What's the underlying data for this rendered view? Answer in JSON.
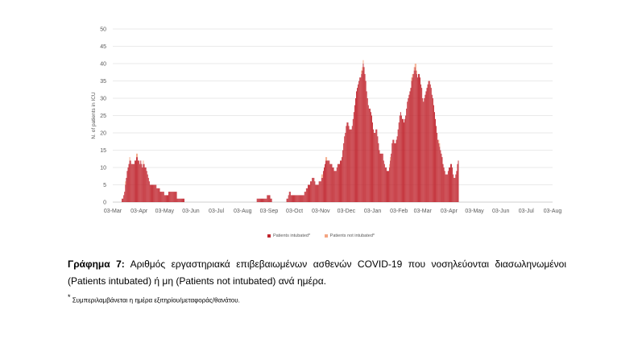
{
  "chart_data": {
    "type": "bar",
    "stacked": true,
    "ylabel": "N. of patients in ICU",
    "xlabel": "",
    "ylim": [
      0,
      50
    ],
    "yticks": [
      0,
      5,
      10,
      15,
      20,
      25,
      30,
      35,
      40,
      45,
      50
    ],
    "grid": true,
    "legend_position": "bottom",
    "xticks": [
      "03-Mar",
      "03-Apr",
      "03-May",
      "03-Jun",
      "03-Jul",
      "03-Aug",
      "03-Sep",
      "03-Oct",
      "03-Nov",
      "03-Dec",
      "03-Jan",
      "03-Feb",
      "03-Mar",
      "03-Apr",
      "03-May",
      "03-Jun",
      "03-Jul",
      "03-Aug"
    ],
    "period": "daily, 03-Mar-2020 to 03-Aug-2021",
    "series": [
      {
        "name": "Patients intubated*",
        "color": "#c0252e",
        "points": [
          [
            1,
            0
          ],
          [
            2,
            0
          ],
          [
            3,
            0
          ],
          [
            4,
            0
          ],
          [
            5,
            0
          ],
          [
            6,
            0
          ],
          [
            7,
            0
          ],
          [
            8,
            0
          ],
          [
            9,
            0
          ],
          [
            10,
            0
          ],
          [
            11,
            1
          ],
          [
            12,
            1
          ],
          [
            13,
            2
          ],
          [
            14,
            3
          ],
          [
            15,
            5
          ],
          [
            16,
            7
          ],
          [
            17,
            9
          ],
          [
            18,
            10
          ],
          [
            19,
            11
          ],
          [
            20,
            12
          ],
          [
            21,
            12
          ],
          [
            22,
            11
          ],
          [
            23,
            11
          ],
          [
            24,
            11
          ],
          [
            25,
            11
          ],
          [
            26,
            12
          ],
          [
            27,
            12
          ],
          [
            28,
            13
          ],
          [
            29,
            13
          ],
          [
            30,
            12
          ],
          [
            31,
            12
          ],
          [
            32,
            11
          ],
          [
            33,
            12
          ],
          [
            34,
            11
          ],
          [
            35,
            10
          ],
          [
            36,
            11
          ],
          [
            37,
            11
          ],
          [
            38,
            10
          ],
          [
            39,
            10
          ],
          [
            40,
            9
          ],
          [
            41,
            8
          ],
          [
            42,
            7
          ],
          [
            43,
            6
          ],
          [
            44,
            5
          ],
          [
            45,
            5
          ],
          [
            46,
            5
          ],
          [
            47,
            5
          ],
          [
            48,
            5
          ],
          [
            49,
            5
          ],
          [
            50,
            5
          ],
          [
            51,
            5
          ],
          [
            52,
            4
          ],
          [
            53,
            4
          ],
          [
            54,
            4
          ],
          [
            55,
            4
          ],
          [
            56,
            3
          ],
          [
            57,
            3
          ],
          [
            58,
            3
          ],
          [
            59,
            3
          ],
          [
            60,
            3
          ],
          [
            61,
            2
          ],
          [
            62,
            2
          ],
          [
            63,
            2
          ],
          [
            64,
            2
          ],
          [
            65,
            2
          ],
          [
            66,
            3
          ],
          [
            67,
            3
          ],
          [
            68,
            3
          ],
          [
            69,
            3
          ],
          [
            70,
            3
          ],
          [
            71,
            3
          ],
          [
            72,
            3
          ],
          [
            73,
            3
          ],
          [
            74,
            3
          ],
          [
            75,
            3
          ],
          [
            76,
            1
          ],
          [
            77,
            1
          ],
          [
            78,
            1
          ],
          [
            79,
            1
          ],
          [
            80,
            1
          ],
          [
            81,
            1
          ],
          [
            82,
            1
          ],
          [
            83,
            1
          ],
          [
            84,
            1
          ],
          [
            85,
            0
          ],
          [
            170,
            1
          ],
          [
            171,
            1
          ],
          [
            172,
            1
          ],
          [
            173,
            1
          ],
          [
            174,
            1
          ],
          [
            175,
            1
          ],
          [
            176,
            1
          ],
          [
            177,
            1
          ],
          [
            178,
            1
          ],
          [
            179,
            1
          ],
          [
            180,
            1
          ],
          [
            181,
            1
          ],
          [
            182,
            2
          ],
          [
            183,
            2
          ],
          [
            184,
            2
          ],
          [
            185,
            2
          ],
          [
            186,
            1
          ],
          [
            187,
            1
          ],
          [
            205,
            1
          ],
          [
            206,
            1
          ],
          [
            207,
            2
          ],
          [
            208,
            3
          ],
          [
            209,
            3
          ],
          [
            210,
            2
          ],
          [
            211,
            2
          ],
          [
            212,
            2
          ],
          [
            213,
            2
          ],
          [
            214,
            2
          ],
          [
            215,
            2
          ],
          [
            216,
            2
          ],
          [
            217,
            2
          ],
          [
            218,
            2
          ],
          [
            219,
            2
          ],
          [
            220,
            2
          ],
          [
            221,
            2
          ],
          [
            222,
            2
          ],
          [
            223,
            2
          ],
          [
            224,
            2
          ],
          [
            225,
            2
          ],
          [
            226,
            3
          ],
          [
            227,
            3
          ],
          [
            228,
            4
          ],
          [
            229,
            4
          ],
          [
            230,
            5
          ],
          [
            231,
            5
          ],
          [
            232,
            5
          ],
          [
            233,
            6
          ],
          [
            234,
            6
          ],
          [
            235,
            7
          ],
          [
            236,
            7
          ],
          [
            237,
            7
          ],
          [
            238,
            6
          ],
          [
            239,
            5
          ],
          [
            240,
            5
          ],
          [
            241,
            5
          ],
          [
            242,
            5
          ],
          [
            243,
            6
          ],
          [
            244,
            6
          ],
          [
            245,
            6
          ],
          [
            246,
            7
          ],
          [
            247,
            7
          ],
          [
            248,
            9
          ],
          [
            249,
            10
          ],
          [
            250,
            11
          ],
          [
            251,
            12
          ],
          [
            252,
            12
          ],
          [
            253,
            12
          ],
          [
            254,
            12
          ],
          [
            255,
            12
          ],
          [
            256,
            11
          ],
          [
            257,
            11
          ],
          [
            258,
            11
          ],
          [
            259,
            10
          ],
          [
            260,
            10
          ],
          [
            261,
            9
          ],
          [
            262,
            9
          ],
          [
            263,
            9
          ],
          [
            264,
            10
          ],
          [
            265,
            11
          ],
          [
            266,
            11
          ],
          [
            267,
            11
          ],
          [
            268,
            12
          ],
          [
            269,
            12
          ],
          [
            270,
            13
          ],
          [
            271,
            15
          ],
          [
            272,
            17
          ],
          [
            273,
            19
          ],
          [
            274,
            20
          ],
          [
            275,
            22
          ],
          [
            276,
            23
          ],
          [
            277,
            23
          ],
          [
            278,
            22
          ],
          [
            279,
            21
          ],
          [
            280,
            21
          ],
          [
            281,
            21
          ],
          [
            282,
            22
          ],
          [
            283,
            24
          ],
          [
            284,
            26
          ],
          [
            285,
            28
          ],
          [
            286,
            30
          ],
          [
            287,
            32
          ],
          [
            288,
            33
          ],
          [
            289,
            34
          ],
          [
            290,
            35
          ],
          [
            291,
            36
          ],
          [
            292,
            36
          ],
          [
            293,
            37
          ],
          [
            294,
            38
          ],
          [
            295,
            40
          ],
          [
            296,
            39
          ],
          [
            297,
            37
          ],
          [
            298,
            35
          ],
          [
            299,
            32
          ],
          [
            300,
            30
          ],
          [
            301,
            28
          ],
          [
            302,
            27
          ],
          [
            303,
            27
          ],
          [
            304,
            26
          ],
          [
            305,
            25
          ],
          [
            306,
            23
          ],
          [
            307,
            21
          ],
          [
            308,
            20
          ],
          [
            309,
            20
          ],
          [
            310,
            21
          ],
          [
            311,
            21
          ],
          [
            312,
            19
          ],
          [
            313,
            17
          ],
          [
            314,
            15
          ],
          [
            315,
            14
          ],
          [
            316,
            14
          ],
          [
            317,
            14
          ],
          [
            318,
            14
          ],
          [
            319,
            12
          ],
          [
            320,
            11
          ],
          [
            321,
            10
          ],
          [
            322,
            10
          ],
          [
            323,
            9
          ],
          [
            324,
            9
          ],
          [
            325,
            9
          ],
          [
            326,
            10
          ],
          [
            327,
            12
          ],
          [
            328,
            14
          ],
          [
            329,
            17
          ],
          [
            330,
            18
          ],
          [
            331,
            18
          ],
          [
            332,
            17
          ],
          [
            333,
            17
          ],
          [
            334,
            18
          ],
          [
            335,
            19
          ],
          [
            336,
            21
          ],
          [
            337,
            23
          ],
          [
            338,
            25
          ],
          [
            339,
            26
          ],
          [
            340,
            25
          ],
          [
            341,
            24
          ],
          [
            342,
            24
          ],
          [
            343,
            23
          ],
          [
            344,
            24
          ],
          [
            345,
            25
          ],
          [
            346,
            27
          ],
          [
            347,
            29
          ],
          [
            348,
            30
          ],
          [
            349,
            31
          ],
          [
            350,
            32
          ],
          [
            351,
            33
          ],
          [
            352,
            35
          ],
          [
            353,
            36
          ],
          [
            354,
            37
          ],
          [
            355,
            38
          ],
          [
            356,
            39
          ],
          [
            357,
            38
          ],
          [
            358,
            37
          ],
          [
            359,
            36
          ],
          [
            360,
            37
          ],
          [
            361,
            37
          ],
          [
            362,
            36
          ],
          [
            363,
            34
          ],
          [
            364,
            33
          ],
          [
            365,
            30
          ],
          [
            366,
            29
          ],
          [
            367,
            30
          ],
          [
            368,
            31
          ],
          [
            369,
            32
          ],
          [
            370,
            33
          ],
          [
            371,
            34
          ],
          [
            372,
            35
          ],
          [
            373,
            35
          ],
          [
            374,
            34
          ],
          [
            375,
            33
          ],
          [
            376,
            31
          ],
          [
            377,
            30
          ],
          [
            378,
            28
          ],
          [
            379,
            26
          ],
          [
            380,
            24
          ],
          [
            381,
            22
          ],
          [
            382,
            20
          ],
          [
            383,
            18
          ],
          [
            384,
            17
          ],
          [
            385,
            16
          ],
          [
            386,
            15
          ],
          [
            387,
            14
          ],
          [
            388,
            13
          ],
          [
            389,
            11
          ],
          [
            390,
            10
          ],
          [
            391,
            9
          ],
          [
            392,
            8
          ],
          [
            393,
            8
          ],
          [
            394,
            8
          ],
          [
            395,
            9
          ],
          [
            396,
            10
          ],
          [
            397,
            10
          ],
          [
            398,
            11
          ],
          [
            399,
            11
          ],
          [
            400,
            10
          ],
          [
            401,
            8
          ],
          [
            402,
            7
          ],
          [
            403,
            7
          ],
          [
            404,
            8
          ],
          [
            405,
            9
          ],
          [
            406,
            11
          ],
          [
            407,
            12
          ]
        ]
      },
      {
        "name": "Patients not intubated*",
        "color": "#f4a582",
        "points": [
          [
            15,
            1
          ],
          [
            20,
            1
          ],
          [
            28,
            1
          ],
          [
            29,
            1
          ],
          [
            36,
            1
          ],
          [
            246,
            1
          ],
          [
            247,
            1
          ],
          [
            251,
            1
          ],
          [
            252,
            1
          ],
          [
            293,
            1
          ],
          [
            294,
            1
          ],
          [
            295,
            1
          ],
          [
            326,
            1
          ],
          [
            327,
            1
          ],
          [
            352,
            1
          ],
          [
            353,
            1
          ],
          [
            355,
            1
          ],
          [
            356,
            1
          ],
          [
            357,
            2
          ],
          [
            358,
            1
          ],
          [
            384,
            1
          ],
          [
            385,
            1
          ]
        ]
      }
    ]
  },
  "legend": {
    "intubated_label": "Patients intubated*",
    "not_intubated_label": "Patients not intubated*"
  },
  "caption": {
    "bold_prefix": "Γράφημα 7:",
    "text": " Αριθμός εργαστηριακά επιβεβαιωμένων ασθενών COVID-19 που νοσηλεύονται διασωληνωμένοι (Patients intubated) ή μη (Patients not intubated) ανά ημέρα."
  },
  "footnote": {
    "marker": "*",
    "text": " Συμπεριλαμβάνεται η ημέρα εξιτηρίου/μεταφοράς/θανάτου."
  }
}
